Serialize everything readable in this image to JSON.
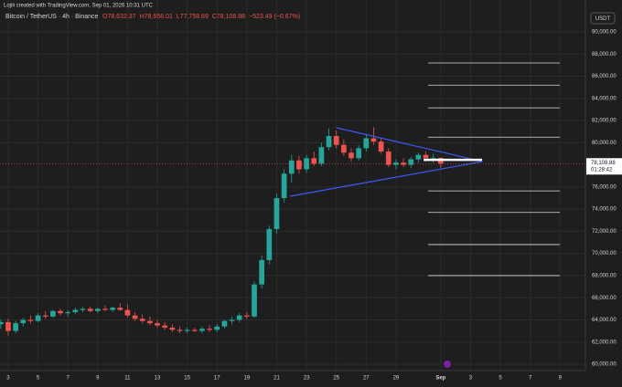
{
  "header": {
    "credit": "Lojiii created with TradingView.com, Sep 01, 2026 10:31 UTC"
  },
  "chart_data": {
    "type": "candlestick",
    "title": "Bitcoin / TetherUS · 4h · Binance",
    "ohlc_text": [
      "O78,632.37",
      "H78,658.01",
      "L77,758.69",
      "C78,108.88",
      "−523.49 (−0.67%)"
    ],
    "currency": "USDT",
    "up_color": "#26a69a",
    "down_color": "#ef5350",
    "trendline_color": "#3d5afe",
    "level_color": "#e0e0e0",
    "xlim": [
      2.45,
      41.7
    ],
    "xticks": [
      3,
      5,
      7,
      9,
      11,
      13,
      15,
      17,
      19,
      21,
      23,
      25,
      27,
      29,
      {
        "value": 32,
        "label": "Sep"
      },
      {
        "value": 34,
        "label": "3"
      },
      {
        "value": 36,
        "label": "5"
      },
      {
        "value": 38,
        "label": "7"
      },
      {
        "value": 40,
        "label": "9"
      }
    ],
    "ylim": [
      59423,
      92885
    ],
    "yticks": [
      {
        "value": 60000,
        "label": "60,000.00"
      },
      {
        "value": 62000,
        "label": "62,000.00"
      },
      {
        "value": 64000,
        "label": "64,000.00"
      },
      {
        "value": 66000,
        "label": "66,000.00"
      },
      {
        "value": 68000,
        "label": "68,000.00"
      },
      {
        "value": 70000,
        "label": "70,000.00"
      },
      {
        "value": 72000,
        "label": "72,000.00"
      },
      {
        "value": 74000,
        "label": "74,000.00"
      },
      {
        "value": 76000,
        "label": "76,000.00"
      },
      {
        "value": 80000,
        "label": "80,000.00"
      },
      {
        "value": 82000,
        "label": "82,000.00"
      },
      {
        "value": 84000,
        "label": "84,000.00"
      },
      {
        "value": 86000,
        "label": "86,000.00"
      },
      {
        "value": 88000,
        "label": "88,000.00"
      },
      {
        "value": 90000,
        "label": "90,000.00"
      }
    ],
    "grid": true,
    "candles": {
      "x": [
        2.5,
        3,
        3.5,
        4,
        4.5,
        5,
        5.5,
        6,
        6.5,
        7,
        7.5,
        8,
        8.5,
        9,
        9.5,
        10,
        10.5,
        11,
        11.5,
        12,
        12.5,
        13,
        13.5,
        14,
        14.5,
        15,
        15.5,
        16,
        16.5,
        17,
        17.5,
        18,
        18.5,
        19,
        19.5,
        20,
        20.5,
        21,
        21.5,
        22,
        22.5,
        23,
        23.5,
        24,
        24.5,
        25,
        25.5,
        26,
        26.5,
        27,
        27.5,
        28,
        28.5,
        29,
        29.5,
        30,
        30.5,
        31,
        31.5,
        32
      ],
      "open": [
        63600,
        63800,
        63000,
        63700,
        64000,
        63900,
        64400,
        64300,
        64800,
        64600,
        64700,
        64900,
        65000,
        64800,
        65000,
        64900,
        65100,
        64900,
        64400,
        64100,
        63900,
        63700,
        63500,
        63300,
        63100,
        63000,
        63100,
        63000,
        63200,
        63100,
        63400,
        63900,
        64000,
        64400,
        64300,
        67200,
        69400,
        72200,
        75000,
        77200,
        78400,
        77600,
        78600,
        78100,
        79600,
        80600,
        79800,
        79100,
        78600,
        79500,
        80400,
        80100,
        79200,
        78000,
        78200,
        78000,
        78500,
        78900,
        78600,
        78632.37
      ],
      "high": [
        64000,
        64100,
        63900,
        64200,
        64400,
        64600,
        64800,
        64900,
        65000,
        64900,
        65100,
        65200,
        65200,
        65100,
        65300,
        65200,
        65500,
        65400,
        64700,
        64500,
        64300,
        64000,
        63800,
        63600,
        63400,
        63300,
        63300,
        63400,
        63500,
        63600,
        64000,
        64300,
        64600,
        64700,
        67500,
        69800,
        72500,
        75400,
        77600,
        78900,
        78800,
        78900,
        79200,
        80000,
        81300,
        81100,
        80300,
        79500,
        79800,
        80800,
        81400,
        80400,
        79500,
        78500,
        78600,
        78700,
        79100,
        79200,
        79000,
        78658.01
      ],
      "low": [
        63200,
        62600,
        62800,
        63400,
        63700,
        63800,
        64100,
        64200,
        64400,
        64300,
        64500,
        64700,
        64700,
        64600,
        64800,
        64700,
        64800,
        64200,
        63900,
        63700,
        63500,
        63300,
        63100,
        62900,
        62800,
        62800,
        62900,
        62800,
        62900,
        62900,
        63200,
        63600,
        63800,
        64100,
        64200,
        66800,
        69000,
        71800,
        74600,
        76400,
        77200,
        77300,
        77900,
        77900,
        79300,
        79500,
        78800,
        78300,
        78400,
        79200,
        79800,
        79000,
        77800,
        77600,
        77800,
        77700,
        78200,
        78300,
        78200,
        77758.69
      ],
      "close": [
        63800,
        63000,
        63700,
        64000,
        63900,
        64400,
        64300,
        64800,
        64600,
        64700,
        64900,
        65000,
        64800,
        65000,
        64900,
        65100,
        64900,
        64400,
        64100,
        63900,
        63700,
        63500,
        63300,
        63100,
        63000,
        63100,
        63000,
        63200,
        63100,
        63400,
        63900,
        64000,
        64400,
        64300,
        67200,
        69400,
        72200,
        75000,
        77200,
        78400,
        77600,
        78600,
        78100,
        79600,
        80600,
        79800,
        79100,
        78600,
        79500,
        80400,
        80100,
        79200,
        78000,
        78200,
        78000,
        78500,
        78900,
        78600,
        78632.37,
        78108.88
      ]
    },
    "trendlines": [
      {
        "x": [
          25,
          34.8
        ],
        "y": [
          81350,
          78300
        ]
      },
      {
        "x": [
          21.9,
          34.8
        ],
        "y": [
          75165,
          78300
        ]
      }
    ],
    "levels": [
      87200,
      85200,
      83150,
      80500,
      75650,
      73700,
      70800,
      68000
    ],
    "key_level": 78450,
    "last_price": {
      "value": 78108.88,
      "label": "78,108.88"
    },
    "countdown": "01:28:42"
  }
}
